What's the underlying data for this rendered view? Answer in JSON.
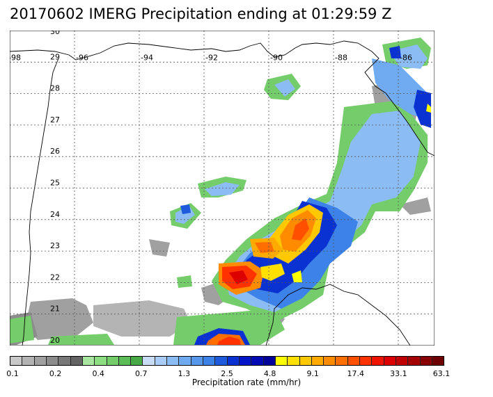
{
  "title": "20170602 IMERG Precipitation ending at 01:29:59 Z",
  "lat_labels": [
    "30",
    "29",
    "28",
    "27",
    "26",
    "25",
    "24",
    "23",
    "22",
    "21",
    "20"
  ],
  "lon_labels": [
    "-98",
    "-96",
    "-94",
    "-92",
    "-90",
    "-88",
    "-86"
  ],
  "colorbar": {
    "title": "Precipitation rate (mm/hr)",
    "tick_labels": [
      "0.1",
      "0.2",
      "0.4",
      "0.7",
      "1.3",
      "2.5",
      "4.8",
      "9.1",
      "17.4",
      "33.1",
      "63.1"
    ],
    "colors": [
      "#c8c8c8",
      "#b4b4b4",
      "#a0a0a0",
      "#8c8c8c",
      "#787878",
      "#646464",
      "#a8e6a0",
      "#8cdc82",
      "#74cc6a",
      "#5cbc58",
      "#48aa46",
      "#c8dcf8",
      "#aaccf8",
      "#8cbcf4",
      "#70aaf0",
      "#5898ec",
      "#3c82e8",
      "#1e5adc",
      "#0a32d2",
      "#0014c8",
      "#000ab4",
      "#00009a",
      "#ffff00",
      "#ffe000",
      "#ffc800",
      "#ffaa00",
      "#ff8c00",
      "#ff6e00",
      "#ff5000",
      "#ff3200",
      "#f01400",
      "#dc0000",
      "#c00000",
      "#a40000",
      "#880000",
      "#6c0000"
    ]
  }
}
